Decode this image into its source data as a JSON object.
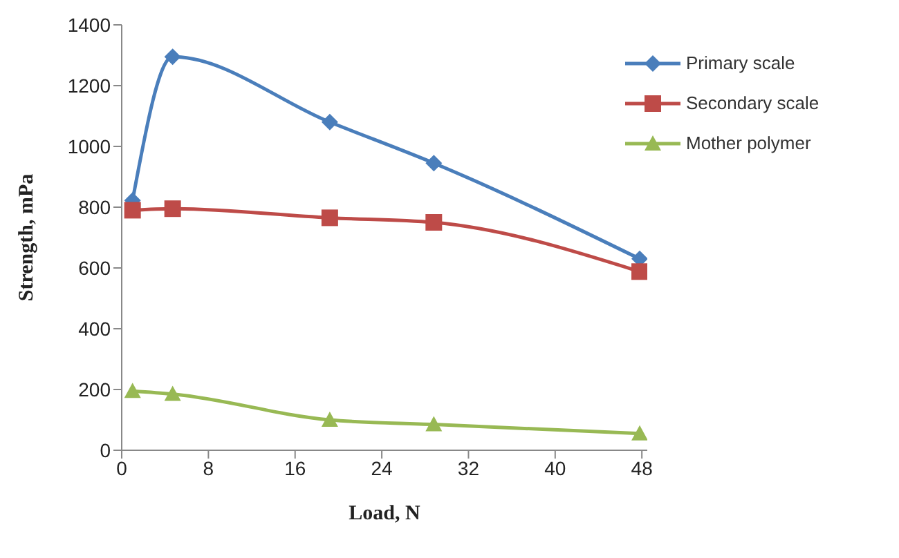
{
  "chart_data": {
    "type": "line",
    "xlabel": "Load, N",
    "ylabel": "Strength, mPa",
    "x": [
      1,
      4.7,
      19.2,
      28.8,
      47.8
    ],
    "xlim": [
      0,
      48.5
    ],
    "xticks": [
      0,
      8,
      16,
      24,
      32,
      40,
      48
    ],
    "ylim": [
      0,
      1400
    ],
    "yticks": [
      0,
      200,
      400,
      600,
      800,
      1000,
      1200,
      1400
    ],
    "legend": "top right",
    "series": [
      {
        "name": "Primary scale",
        "color": "#4a7ebb",
        "marker": "diamond",
        "values": [
          822,
          1295,
          1080,
          945,
          630
        ]
      },
      {
        "name": "Secondary scale",
        "color": "#be4b48",
        "marker": "square",
        "values": [
          790,
          795,
          765,
          750,
          588
        ]
      },
      {
        "name": "Mother polymer",
        "color": "#98b954",
        "marker": "triangle",
        "values": [
          195,
          185,
          100,
          85,
          55
        ]
      }
    ]
  }
}
